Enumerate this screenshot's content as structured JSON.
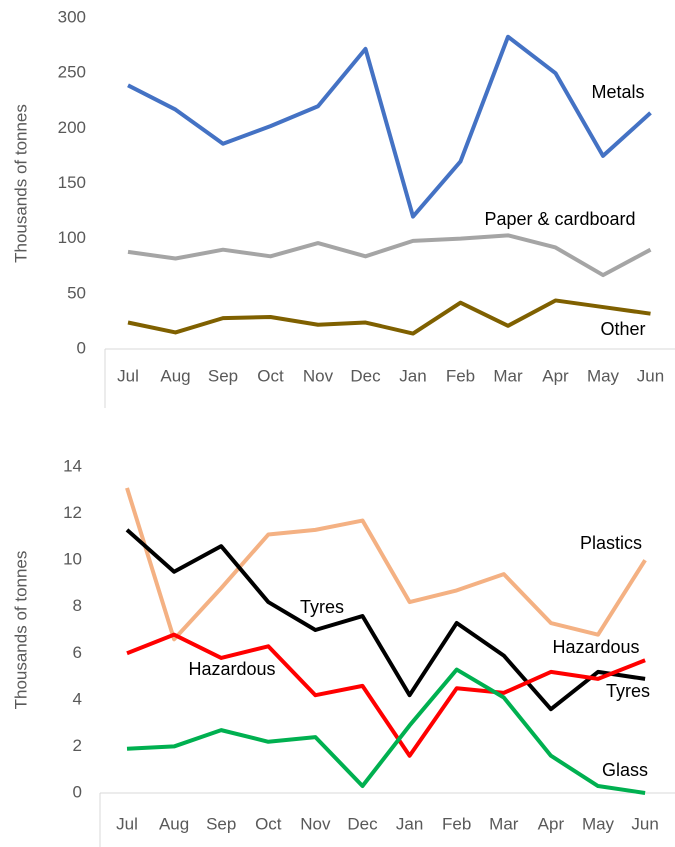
{
  "chart_data": [
    {
      "type": "line",
      "ylabel": "Thousands of tonnes",
      "categories": [
        "Jul",
        "Aug",
        "Sep",
        "Oct",
        "Nov",
        "Dec",
        "Jan",
        "Feb",
        "Mar",
        "Apr",
        "May",
        "Jun"
      ],
      "ylim": [
        0,
        300
      ],
      "yticks": [
        0,
        50,
        100,
        150,
        200,
        250,
        300
      ],
      "series": [
        {
          "name": "Metals",
          "color": "#4472c4",
          "values": [
            239,
            217,
            186,
            202,
            220,
            272,
            120,
            170,
            283,
            250,
            175,
            214
          ]
        },
        {
          "name": "Paper & cardboard",
          "color": "#a5a5a5",
          "values": [
            88,
            82,
            90,
            84,
            96,
            84,
            98,
            100,
            103,
            92,
            67,
            90
          ]
        },
        {
          "name": "Other",
          "color": "#7f6000",
          "values": [
            24,
            15,
            28,
            29,
            22,
            24,
            14,
            42,
            21,
            44,
            38,
            32
          ]
        }
      ]
    },
    {
      "type": "line",
      "ylabel": "Thousands of tonnes",
      "categories": [
        "Jul",
        "Aug",
        "Sep",
        "Oct",
        "Nov",
        "Dec",
        "Jan",
        "Feb",
        "Mar",
        "Apr",
        "May",
        "Jun"
      ],
      "ylim": [
        0,
        14
      ],
      "yticks": [
        0,
        2,
        4,
        6,
        8,
        10,
        12,
        14
      ],
      "series": [
        {
          "name": "Plastics",
          "color": "#f4b183",
          "values": [
            13.1,
            6.6,
            8.8,
            11.1,
            11.3,
            11.7,
            8.2,
            8.7,
            9.4,
            7.3,
            6.8,
            10.0
          ]
        },
        {
          "name": "Tyres",
          "color": "#000000",
          "values": [
            11.3,
            9.5,
            10.6,
            8.2,
            7.0,
            7.6,
            4.2,
            7.3,
            5.9,
            3.6,
            5.2,
            4.9
          ]
        },
        {
          "name": "Hazardous",
          "color": "#ff0000",
          "values": [
            6.0,
            6.8,
            5.8,
            6.3,
            4.2,
            4.6,
            1.6,
            4.5,
            4.3,
            5.2,
            4.9,
            5.7
          ]
        },
        {
          "name": "Glass",
          "color": "#00b050",
          "values": [
            1.9,
            2.0,
            2.7,
            2.2,
            2.4,
            0.3,
            2.9,
            5.3,
            4.1,
            1.6,
            0.3,
            0
          ]
        }
      ]
    }
  ]
}
